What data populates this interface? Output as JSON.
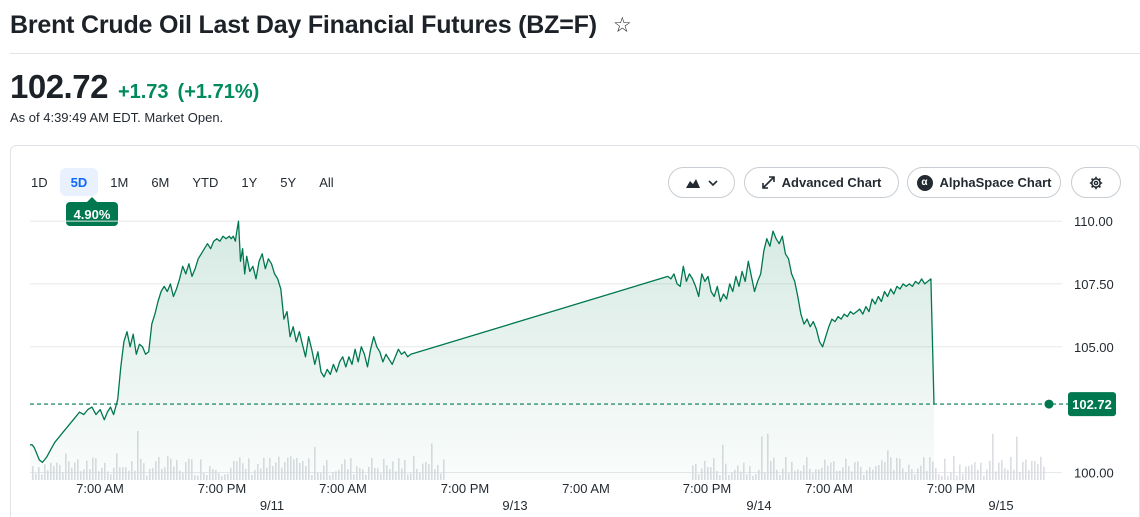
{
  "header": {
    "title": "Brent Crude Oil Last Day Financial Futures (BZ=F)",
    "favorite_icon": "star-outline-icon"
  },
  "quote": {
    "price": "102.72",
    "change": "+1.73",
    "change_percent": "(+1.71%)",
    "as_of": "As of 4:39:49 AM EDT. Market Open.",
    "positive_color": "#008a5e"
  },
  "toolbar": {
    "ranges": [
      "1D",
      "5D",
      "1M",
      "6M",
      "YTD",
      "1Y",
      "5Y",
      "All"
    ],
    "active_range": "5D",
    "active_range_return": "4.90%",
    "chart_type_icon": "mountain-chart-icon",
    "advanced_chart_label": "Advanced Chart",
    "alphaspace_chart_label": "AlphaSpace Chart",
    "settings_icon": "gear-icon"
  },
  "chart_data": {
    "type": "area",
    "title": "",
    "xlabel": "",
    "ylabel": "",
    "y_ticks": [
      "110.00",
      "107.50",
      "105.00",
      "100.00"
    ],
    "ylim": [
      99.7,
      110.6
    ],
    "x_tick_labels": [
      "7:00 AM",
      "7:00 PM",
      "7:00 AM",
      "7:00 PM",
      "7:00 AM",
      "7:00 PM",
      "7:00 AM",
      "7:00 PM"
    ],
    "date_labels": [
      "9/11",
      "9/13",
      "9/14",
      "9/15"
    ],
    "reference_line": 102.72,
    "last_price_tag": "102.72",
    "line_color": "#00784f",
    "grid": true,
    "series": [
      {
        "values": [
          101.1,
          101.1,
          101.0,
          100.8,
          100.5,
          100.4,
          100.6,
          100.9,
          101.2,
          101.4,
          101.6,
          101.8,
          102.0,
          102.2,
          102.4,
          102.3,
          102.5,
          102.6,
          102.3,
          102.5,
          102.1,
          102.4,
          102.6,
          102.3,
          102.9,
          104.2,
          105.2,
          105.6,
          105.0,
          105.5,
          104.7,
          105.1,
          105.0,
          104.7,
          104.8,
          105.9,
          106.3,
          106.8,
          107.2,
          107.4,
          107.2,
          107.5,
          107.0,
          107.3,
          107.7,
          108.2,
          107.9,
          108.3,
          107.8,
          108.1,
          108.5,
          108.7,
          108.9,
          109.1,
          108.9,
          109.2,
          109.3,
          109.2,
          109.4,
          109.3,
          109.4,
          109.3,
          109.4,
          109.2,
          109.5,
          110.0,
          108.4,
          108.9,
          107.9,
          108.6,
          108.0,
          108.2,
          107.7,
          108.4,
          108.7,
          108.1,
          108.5,
          108.3,
          107.9,
          107.7,
          107.3,
          106.1,
          106.4,
          105.4,
          105.8,
          105.2,
          105.6,
          105.1,
          104.6,
          105.4,
          104.9,
          104.3,
          104.8,
          104.0,
          103.8,
          104.1,
          103.9,
          104.3,
          104.0,
          104.4,
          104.6,
          104.2,
          104.6,
          104.3,
          104.9,
          104.4,
          105.0,
          104.7,
          104.2,
          104.9,
          105.4,
          105.0,
          104.8,
          104.4,
          104.7,
          104.5,
          104.3,
          104.6,
          104.9,
          104.7,
          104.8,
          104.6,
          104.7
        ],
        "x": [
          0,
          0.002,
          0.004,
          0.006,
          0.009,
          0.012,
          0.016,
          0.02,
          0.024,
          0.028,
          0.032,
          0.036,
          0.04,
          0.044,
          0.048,
          0.052,
          0.056,
          0.06,
          0.064,
          0.068,
          0.072,
          0.075,
          0.078,
          0.081,
          0.085,
          0.088,
          0.091,
          0.094,
          0.097,
          0.1,
          0.103,
          0.106,
          0.109,
          0.112,
          0.115,
          0.118,
          0.121,
          0.124,
          0.127,
          0.13,
          0.133,
          0.136,
          0.139,
          0.142,
          0.145,
          0.148,
          0.151,
          0.154,
          0.157,
          0.16,
          0.163,
          0.166,
          0.169,
          0.172,
          0.175,
          0.178,
          0.181,
          0.184,
          0.187,
          0.19,
          0.193,
          0.195,
          0.197,
          0.199,
          0.2,
          0.202,
          0.204,
          0.206,
          0.208,
          0.21,
          0.213,
          0.216,
          0.219,
          0.222,
          0.225,
          0.228,
          0.231,
          0.234,
          0.237,
          0.24,
          0.243,
          0.246,
          0.249,
          0.252,
          0.255,
          0.258,
          0.261,
          0.264,
          0.267,
          0.27,
          0.273,
          0.276,
          0.279,
          0.282,
          0.285,
          0.288,
          0.291,
          0.294,
          0.297,
          0.3,
          0.303,
          0.306,
          0.309,
          0.312,
          0.315,
          0.318,
          0.321,
          0.324,
          0.327,
          0.33,
          0.333,
          0.336,
          0.339,
          0.342,
          0.345,
          0.348,
          0.351,
          0.354,
          0.357,
          0.36,
          0.363,
          0.366,
          0.369
        ]
      },
      {
        "values": [
          104.7,
          107.8,
          107.7,
          107.9,
          107.5,
          107.4,
          108.2,
          107.6,
          107.9,
          107.7,
          107.4,
          107.0,
          107.9,
          107.6,
          107.8,
          107.2,
          107.0,
          107.4,
          106.8,
          107.1,
          106.9,
          107.5,
          107.2,
          107.8,
          107.4,
          108.0,
          107.6,
          108.4,
          107.8,
          107.2,
          107.6,
          107.9,
          108.8,
          109.3,
          109.0,
          109.6,
          109.3,
          109.1,
          109.4,
          108.7,
          108.5,
          107.9,
          107.6,
          107.0,
          106.3,
          105.9,
          106.1,
          105.8,
          106.0,
          105.7,
          105.2,
          105.0,
          105.4,
          105.8,
          106.1,
          106.0,
          106.2,
          106.1,
          106.3,
          106.2,
          106.4,
          106.3,
          106.4,
          106.5,
          106.3,
          106.6,
          106.4,
          106.9,
          106.7,
          107.0,
          106.8,
          107.2,
          107.0,
          107.3,
          107.1,
          107.4,
          107.3,
          107.5,
          107.4,
          107.5,
          107.4,
          107.6,
          107.5,
          107.7,
          107.5,
          107.6,
          107.7,
          102.7
        ],
        "x": [
          0.369,
          0.618,
          0.621,
          0.624,
          0.627,
          0.63,
          0.633,
          0.636,
          0.639,
          0.642,
          0.645,
          0.648,
          0.651,
          0.654,
          0.657,
          0.66,
          0.663,
          0.666,
          0.669,
          0.672,
          0.675,
          0.678,
          0.681,
          0.684,
          0.687,
          0.69,
          0.693,
          0.696,
          0.699,
          0.702,
          0.705,
          0.708,
          0.711,
          0.714,
          0.717,
          0.72,
          0.723,
          0.726,
          0.729,
          0.732,
          0.735,
          0.738,
          0.741,
          0.744,
          0.747,
          0.75,
          0.753,
          0.756,
          0.759,
          0.762,
          0.765,
          0.768,
          0.771,
          0.774,
          0.777,
          0.78,
          0.783,
          0.786,
          0.789,
          0.792,
          0.795,
          0.798,
          0.801,
          0.804,
          0.807,
          0.81,
          0.813,
          0.816,
          0.819,
          0.822,
          0.825,
          0.828,
          0.831,
          0.834,
          0.837,
          0.84,
          0.843,
          0.846,
          0.849,
          0.852,
          0.855,
          0.858,
          0.861,
          0.864,
          0.867,
          0.87,
          0.873,
          0.876
        ]
      }
    ]
  }
}
